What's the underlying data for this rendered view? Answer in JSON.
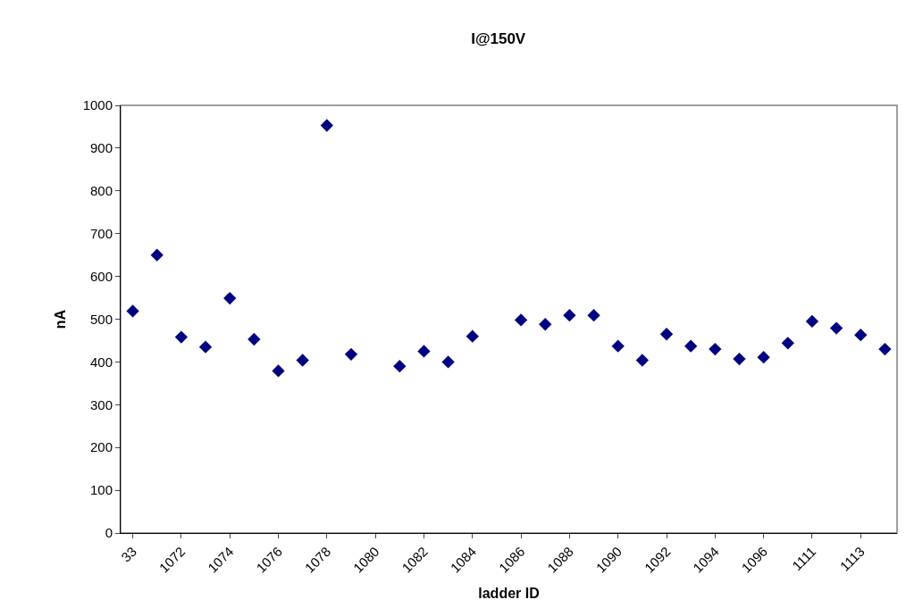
{
  "chart_data": {
    "type": "scatter",
    "title": "I@150V",
    "xlabel": "ladder ID",
    "ylabel": "nA",
    "categories": [
      "33",
      null,
      "1072",
      null,
      "1074",
      null,
      "1076",
      null,
      "1078",
      null,
      "1080",
      null,
      "1082",
      null,
      "1084",
      null,
      "1086",
      null,
      "1088",
      null,
      "1090",
      null,
      "1092",
      null,
      "1094",
      null,
      "1096",
      null,
      "1111",
      null,
      "1113",
      null
    ],
    "series": [
      {
        "color": "#000080",
        "values": [
          519,
          650,
          458,
          435,
          549,
          453,
          379,
          404,
          953,
          418,
          null,
          390,
          425,
          400,
          460,
          null,
          498,
          488,
          509,
          509,
          437,
          404,
          465,
          437,
          430,
          407,
          411,
          444,
          495,
          479,
          463,
          430
        ]
      }
    ],
    "ylim": [
      0,
      1000
    ],
    "yticks": [
      0,
      100,
      200,
      300,
      400,
      500,
      600,
      700,
      800,
      900,
      1000
    ],
    "marker": "diamond",
    "grid": false
  }
}
